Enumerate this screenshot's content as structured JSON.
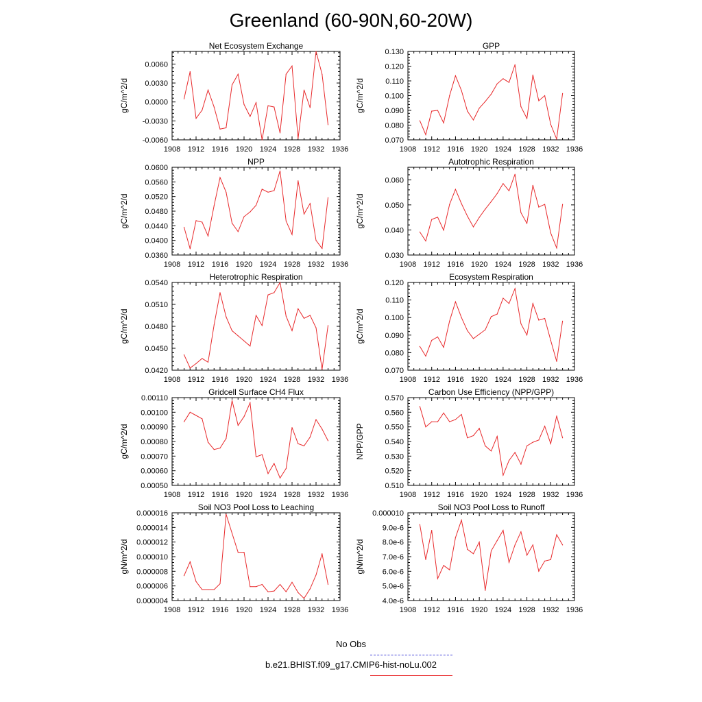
{
  "title": "Greenland (60-90N,60-20W)",
  "legend": [
    {
      "label": "No Obs",
      "color": "#3b3bd6",
      "style": "dashed"
    },
    {
      "label": "b.e21.BHIST.f09_g17.CMIP6-hist-noLu.002",
      "color": "#e8292b",
      "style": "solid"
    }
  ],
  "chart_data": [
    {
      "type": "line",
      "title": "Net Ecosystem Exchange",
      "ylabel": "gC/m^2/d",
      "xlim": [
        1908,
        1936
      ],
      "ylim": [
        -0.006,
        0.008
      ],
      "xticks": [
        1908,
        1912,
        1916,
        1920,
        1924,
        1928,
        1932,
        1936
      ],
      "yticks": [
        -0.006,
        -0.003,
        0.0,
        0.003,
        0.006
      ],
      "ytick_labels": [
        "-0.0060",
        "-0.0030",
        "0.0000",
        "0.0030",
        "0.0060"
      ],
      "series": [
        {
          "color": "#e8292b",
          "x": [
            1910,
            1911,
            1912,
            1913,
            1914,
            1915,
            1916,
            1917,
            1918,
            1919,
            1920,
            1921,
            1922,
            1923,
            1924,
            1925,
            1926,
            1927,
            1928,
            1929,
            1930,
            1931,
            1932,
            1933,
            1934
          ],
          "values": [
            0.0005,
            0.0048,
            -0.0026,
            -0.0013,
            0.0019,
            -0.0008,
            -0.0043,
            -0.0041,
            0.0027,
            0.0044,
            -0.0004,
            -0.0023,
            -0.0001,
            -0.006,
            -0.0006,
            -0.0008,
            -0.0049,
            0.0044,
            0.0057,
            -0.0058,
            0.0019,
            -0.0009,
            0.008,
            0.0044,
            -0.0036
          ]
        }
      ]
    },
    {
      "type": "line",
      "title": "GPP",
      "ylabel": "gC/m^2/d",
      "xlim": [
        1908,
        1936
      ],
      "ylim": [
        0.07,
        0.13
      ],
      "xticks": [
        1908,
        1912,
        1916,
        1920,
        1924,
        1928,
        1932,
        1936
      ],
      "yticks": [
        0.07,
        0.08,
        0.09,
        0.1,
        0.11,
        0.12,
        0.13
      ],
      "ytick_labels": [
        "0.070",
        "0.080",
        "0.090",
        "0.100",
        "0.110",
        "0.120",
        "0.130"
      ],
      "series": [
        {
          "color": "#e8292b",
          "x": [
            1910,
            1911,
            1912,
            1913,
            1914,
            1915,
            1916,
            1917,
            1918,
            1919,
            1920,
            1921,
            1922,
            1923,
            1924,
            1925,
            1926,
            1927,
            1928,
            1929,
            1930,
            1931,
            1932,
            1933,
            1934
          ],
          "values": [
            0.083,
            0.0735,
            0.0895,
            0.09,
            0.0815,
            0.1,
            0.1135,
            0.1035,
            0.0895,
            0.0835,
            0.0915,
            0.096,
            0.101,
            0.108,
            0.1115,
            0.109,
            0.121,
            0.0925,
            0.0845,
            0.114,
            0.0965,
            0.1,
            0.0805,
            0.0705,
            0.1015
          ]
        }
      ]
    },
    {
      "type": "line",
      "title": "NPP",
      "ylabel": "gC/m^2/d",
      "xlim": [
        1908,
        1936
      ],
      "ylim": [
        0.036,
        0.06
      ],
      "xticks": [
        1908,
        1912,
        1916,
        1920,
        1924,
        1928,
        1932,
        1936
      ],
      "yticks": [
        0.036,
        0.04,
        0.044,
        0.048,
        0.052,
        0.056,
        0.06
      ],
      "ytick_labels": [
        "0.0360",
        "0.0400",
        "0.0440",
        "0.0480",
        "0.0520",
        "0.0560",
        "0.0600"
      ],
      "series": [
        {
          "color": "#e8292b",
          "x": [
            1910,
            1911,
            1912,
            1913,
            1914,
            1915,
            1916,
            1917,
            1918,
            1919,
            1920,
            1921,
            1922,
            1923,
            1924,
            1925,
            1926,
            1927,
            1928,
            1929,
            1930,
            1931,
            1932,
            1933,
            1934
          ],
          "values": [
            0.0436,
            0.0377,
            0.0454,
            0.045,
            0.0412,
            0.0495,
            0.0572,
            0.0532,
            0.0447,
            0.0424,
            0.0465,
            0.0478,
            0.0496,
            0.054,
            0.0532,
            0.0536,
            0.059,
            0.0453,
            0.0416,
            0.0563,
            0.0472,
            0.0501,
            0.04,
            0.0378,
            0.0517
          ]
        }
      ]
    },
    {
      "type": "line",
      "title": "Autotrophic Respiration",
      "ylabel": "gC/m^2/d",
      "xlim": [
        1908,
        1936
      ],
      "ylim": [
        0.03,
        0.065
      ],
      "xticks": [
        1908,
        1912,
        1916,
        1920,
        1924,
        1928,
        1932,
        1936
      ],
      "yticks": [
        0.03,
        0.04,
        0.05,
        0.06
      ],
      "ytick_labels": [
        "0.030",
        "0.040",
        "0.050",
        "0.060"
      ],
      "series": [
        {
          "color": "#e8292b",
          "x": [
            1910,
            1911,
            1912,
            1913,
            1914,
            1915,
            1916,
            1917,
            1918,
            1919,
            1920,
            1921,
            1922,
            1923,
            1924,
            1925,
            1926,
            1927,
            1928,
            1929,
            1930,
            1931,
            1932,
            1933,
            1934
          ],
          "values": [
            0.0392,
            0.0356,
            0.0442,
            0.0451,
            0.0399,
            0.0502,
            0.0562,
            0.0505,
            0.0455,
            0.0412,
            0.045,
            0.0483,
            0.0513,
            0.0545,
            0.0585,
            0.0556,
            0.0622,
            0.0469,
            0.0426,
            0.0578,
            0.0491,
            0.0502,
            0.0388,
            0.0328,
            0.0502
          ]
        }
      ]
    },
    {
      "type": "line",
      "title": "Heterotrophic Respiration",
      "ylabel": "gC/m^2/d",
      "xlim": [
        1908,
        1936
      ],
      "ylim": [
        0.042,
        0.054
      ],
      "xticks": [
        1908,
        1912,
        1916,
        1920,
        1924,
        1928,
        1932,
        1936
      ],
      "yticks": [
        0.042,
        0.045,
        0.048,
        0.051,
        0.054
      ],
      "ytick_labels": [
        "0.0420",
        "0.0450",
        "0.0480",
        "0.0510",
        "0.0540"
      ],
      "series": [
        {
          "color": "#e8292b",
          "x": [
            1910,
            1911,
            1912,
            1913,
            1914,
            1915,
            1916,
            1917,
            1918,
            1919,
            1920,
            1921,
            1922,
            1923,
            1924,
            1925,
            1926,
            1927,
            1928,
            1929,
            1930,
            1931,
            1932,
            1933,
            1934
          ],
          "values": [
            0.0441,
            0.0423,
            0.0429,
            0.0436,
            0.0431,
            0.0482,
            0.0526,
            0.0493,
            0.0474,
            0.0467,
            0.046,
            0.0453,
            0.0495,
            0.0481,
            0.0523,
            0.0526,
            0.054,
            0.0494,
            0.0474,
            0.0504,
            0.0491,
            0.0495,
            0.0478,
            0.0421,
            0.0481
          ]
        }
      ]
    },
    {
      "type": "line",
      "title": "Ecosystem Respiration",
      "ylabel": "gC/m^2/d",
      "xlim": [
        1908,
        1936
      ],
      "ylim": [
        0.07,
        0.12
      ],
      "xticks": [
        1908,
        1912,
        1916,
        1920,
        1924,
        1928,
        1932,
        1936
      ],
      "yticks": [
        0.07,
        0.08,
        0.09,
        0.1,
        0.11,
        0.12
      ],
      "ytick_labels": [
        "0.070",
        "0.080",
        "0.090",
        "0.100",
        "0.110",
        "0.120"
      ],
      "series": [
        {
          "color": "#e8292b",
          "x": [
            1910,
            1911,
            1912,
            1913,
            1914,
            1915,
            1916,
            1917,
            1918,
            1919,
            1920,
            1921,
            1922,
            1923,
            1924,
            1925,
            1926,
            1927,
            1928,
            1929,
            1930,
            1931,
            1932,
            1933,
            1934
          ],
          "values": [
            0.0835,
            0.078,
            0.087,
            0.089,
            0.083,
            0.098,
            0.109,
            0.1,
            0.0925,
            0.088,
            0.0905,
            0.093,
            0.1005,
            0.102,
            0.111,
            0.108,
            0.1165,
            0.0965,
            0.09,
            0.108,
            0.0985,
            0.0995,
            0.087,
            0.075,
            0.098
          ]
        }
      ]
    },
    {
      "type": "line",
      "title": "Gridcell Surface CH4 Flux",
      "ylabel": "gC/m^2/d",
      "xlim": [
        1908,
        1936
      ],
      "ylim": [
        0.0005,
        0.0011
      ],
      "xticks": [
        1908,
        1912,
        1916,
        1920,
        1924,
        1928,
        1932,
        1936
      ],
      "yticks": [
        0.0005,
        0.0006,
        0.0007,
        0.0008,
        0.0009,
        0.001,
        0.0011
      ],
      "ytick_labels": [
        "0.00050",
        "0.00060",
        "0.00070",
        "0.00080",
        "0.00090",
        "0.00100",
        "0.00110"
      ],
      "series": [
        {
          "color": "#e8292b",
          "x": [
            1910,
            1911,
            1912,
            1913,
            1914,
            1915,
            1916,
            1917,
            1918,
            1919,
            1920,
            1921,
            1922,
            1923,
            1924,
            1925,
            1926,
            1927,
            1928,
            1929,
            1930,
            1931,
            1932,
            1933,
            1934
          ],
          "values": [
            0.000935,
            0.001,
            0.000978,
            0.000955,
            0.000795,
            0.000745,
            0.000755,
            0.00082,
            0.00108,
            0.00091,
            0.00097,
            0.001065,
            0.000695,
            0.00071,
            0.00058,
            0.00065,
            0.00055,
            0.000615,
            0.000895,
            0.000785,
            0.00077,
            0.00083,
            0.00095,
            0.000885,
            0.000805
          ]
        }
      ]
    },
    {
      "type": "line",
      "title": "Carbon Use Efficiency (NPP/GPP)",
      "ylabel": "NPP/GPP",
      "xlim": [
        1908,
        1936
      ],
      "ylim": [
        0.51,
        0.57
      ],
      "xticks": [
        1908,
        1912,
        1916,
        1920,
        1924,
        1928,
        1932,
        1936
      ],
      "yticks": [
        0.51,
        0.52,
        0.53,
        0.54,
        0.55,
        0.56,
        0.57
      ],
      "ytick_labels": [
        "0.510",
        "0.520",
        "0.530",
        "0.540",
        "0.550",
        "0.560",
        "0.570"
      ],
      "series": [
        {
          "color": "#e8292b",
          "x": [
            1910,
            1911,
            1912,
            1913,
            1914,
            1915,
            1916,
            1917,
            1918,
            1919,
            1920,
            1921,
            1922,
            1923,
            1924,
            1925,
            1926,
            1927,
            1928,
            1929,
            1930,
            1931,
            1932,
            1933,
            1934
          ],
          "values": [
            0.564,
            0.55,
            0.5535,
            0.5535,
            0.5595,
            0.5535,
            0.555,
            0.5585,
            0.5425,
            0.544,
            0.549,
            0.537,
            0.5335,
            0.5435,
            0.517,
            0.527,
            0.5325,
            0.5245,
            0.537,
            0.5395,
            0.541,
            0.5505,
            0.5385,
            0.5575,
            0.5425
          ]
        }
      ]
    },
    {
      "type": "line",
      "title": "Soil NO3 Pool Loss to Leaching",
      "ylabel": "gN/m^2/d",
      "xlim": [
        1908,
        1936
      ],
      "ylim": [
        4e-06,
        1.6e-05
      ],
      "xticks": [
        1908,
        1912,
        1916,
        1920,
        1924,
        1928,
        1932,
        1936
      ],
      "yticks": [
        4e-06,
        6e-06,
        8e-06,
        1e-05,
        1.2e-05,
        1.4e-05,
        1.6e-05
      ],
      "ytick_labels": [
        "0.000004",
        "0.000006",
        "0.000008",
        "0.000010",
        "0.000012",
        "0.000014",
        "0.000016"
      ],
      "series": [
        {
          "color": "#e8292b",
          "x": [
            1910,
            1911,
            1912,
            1913,
            1914,
            1915,
            1916,
            1917,
            1918,
            1919,
            1920,
            1921,
            1922,
            1923,
            1924,
            1925,
            1926,
            1927,
            1928,
            1929,
            1930,
            1931,
            1932,
            1933,
            1934
          ],
          "values": [
            7.4e-06,
            9.3e-06,
            6.6e-06,
            5.5e-06,
            5.5e-06,
            5.5e-06,
            6.3e-06,
            1.58e-05,
            1.32e-05,
            1.06e-05,
            1.06e-05,
            5.9e-06,
            5.9e-06,
            6.2e-06,
            5.2e-06,
            5.3e-06,
            6.2e-06,
            5.2e-06,
            6.5e-06,
            5.1e-06,
            4.3e-06,
            5.6e-06,
            7.5e-06,
            1.04e-05,
            6.2e-06
          ]
        }
      ]
    },
    {
      "type": "line",
      "title": "Soil NO3 Pool Loss to Runoff",
      "ylabel": "gN/m^2/d",
      "xlim": [
        1908,
        1936
      ],
      "ylim": [
        4e-06,
        1e-05
      ],
      "xticks": [
        1908,
        1912,
        1916,
        1920,
        1924,
        1928,
        1932,
        1936
      ],
      "yticks": [
        4e-06,
        5e-06,
        6e-06,
        7e-06,
        8e-06,
        9e-06,
        1e-05
      ],
      "ytick_labels": [
        "4.0e-6",
        "5.0e-6",
        "6.0e-6",
        "7.0e-6",
        "8.0e-6",
        "9.0e-6",
        "0.000010"
      ],
      "series": [
        {
          "color": "#e8292b",
          "x": [
            1910,
            1911,
            1912,
            1913,
            1914,
            1915,
            1916,
            1917,
            1918,
            1919,
            1920,
            1921,
            1922,
            1923,
            1924,
            1925,
            1926,
            1927,
            1928,
            1929,
            1930,
            1931,
            1932,
            1933,
            1934
          ],
          "values": [
            9.2e-06,
            6.8e-06,
            8.8e-06,
            5.5e-06,
            6.4e-06,
            6.1e-06,
            8.3e-06,
            9.5e-06,
            7.5e-06,
            7.2e-06,
            8e-06,
            4.7e-06,
            7.4e-06,
            8.1e-06,
            8.8e-06,
            6.6e-06,
            7.8e-06,
            8.7e-06,
            7.1e-06,
            7.8e-06,
            6e-06,
            6.7e-06,
            6.8e-06,
            8.5e-06,
            7.8e-06
          ]
        }
      ]
    }
  ]
}
